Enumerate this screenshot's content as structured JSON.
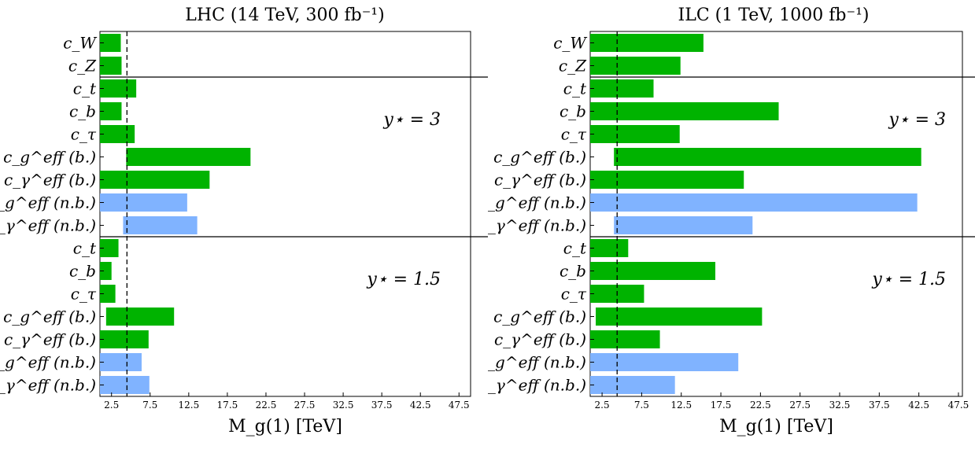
{
  "chart_data": [
    {
      "type": "bar",
      "orientation": "horizontal",
      "title": "LHC (14 TeV, 300 fb⁻¹)",
      "xlabel": "M_g(1) [TeV]",
      "xlim": [
        1.0,
        49.0
      ],
      "xticks": [
        "2.5",
        "7.5",
        "12.5",
        "17.5",
        "22.5",
        "27.5",
        "32.5",
        "37.5",
        "42.5",
        "47.5"
      ],
      "xtick_values": [
        2.5,
        7.5,
        12.5,
        17.5,
        22.5,
        27.5,
        32.5,
        37.5,
        42.5,
        47.5
      ],
      "reference_line": 4.5,
      "grid": false,
      "groups": [
        {
          "label": "",
          "rows": [
            {
              "label": "c_W",
              "start": 1.0,
              "end": 3.7,
              "color": "#00b300"
            },
            {
              "label": "c_Z",
              "start": 1.0,
              "end": 3.8,
              "color": "#00b300"
            }
          ]
        },
        {
          "label": "y⋆ = 3",
          "rows": [
            {
              "label": "c_t",
              "start": 1.0,
              "end": 5.7,
              "color": "#00b300"
            },
            {
              "label": "c_b",
              "start": 1.0,
              "end": 3.8,
              "color": "#00b300"
            },
            {
              "label": "c_τ",
              "start": 1.0,
              "end": 5.5,
              "color": "#00b300"
            },
            {
              "label": "c_g^eff (b.)",
              "start": 4.4,
              "end": 20.5,
              "color": "#00b300"
            },
            {
              "label": "c_γ^eff (b.)",
              "start": 1.0,
              "end": 15.2,
              "color": "#00b300"
            },
            {
              "label": "c_g^eff (n.b.)",
              "start": 1.0,
              "end": 12.3,
              "color": "#80b3ff"
            },
            {
              "label": "c_γ^eff (n.b.)",
              "start": 4.0,
              "end": 13.6,
              "color": "#80b3ff"
            }
          ]
        },
        {
          "label": "y⋆ = 1.5",
          "rows": [
            {
              "label": "c_t",
              "start": 1.0,
              "end": 3.4,
              "color": "#00b300"
            },
            {
              "label": "c_b",
              "start": 1.0,
              "end": 2.5,
              "color": "#00b300"
            },
            {
              "label": "c_τ",
              "start": 1.0,
              "end": 3.0,
              "color": "#00b300"
            },
            {
              "label": "c_g^eff (b.)",
              "start": 1.8,
              "end": 10.6,
              "color": "#00b300"
            },
            {
              "label": "c_γ^eff (b.)",
              "start": 1.0,
              "end": 7.3,
              "color": "#00b300"
            },
            {
              "label": "c_g^eff (n.b.)",
              "start": 1.0,
              "end": 6.4,
              "color": "#80b3ff"
            },
            {
              "label": "c_γ^eff (n.b.)",
              "start": 1.0,
              "end": 7.4,
              "color": "#80b3ff"
            }
          ]
        }
      ]
    },
    {
      "type": "bar",
      "orientation": "horizontal",
      "title": "ILC (1 TeV, 1000 fb⁻¹)",
      "xlabel": "M_g(1) [TeV]",
      "xlim": [
        1.0,
        48.0
      ],
      "xticks": [
        "2.5",
        "7.5",
        "12.5",
        "17.5",
        "22.5",
        "27.5",
        "32.5",
        "37.5",
        "42.5",
        "47.5"
      ],
      "xtick_values": [
        2.5,
        7.5,
        12.5,
        17.5,
        22.5,
        27.5,
        32.5,
        37.5,
        42.5,
        47.5
      ],
      "reference_line": 4.4,
      "grid": false,
      "groups": [
        {
          "label": "",
          "rows": [
            {
              "label": "c_W",
              "start": 1.0,
              "end": 15.3,
              "color": "#00b300"
            },
            {
              "label": "c_Z",
              "start": 1.0,
              "end": 12.4,
              "color": "#00b300"
            }
          ]
        },
        {
          "label": "y⋆ = 3",
          "rows": [
            {
              "label": "c_t",
              "start": 1.0,
              "end": 9.0,
              "color": "#00b300"
            },
            {
              "label": "c_b",
              "start": 1.0,
              "end": 24.8,
              "color": "#00b300"
            },
            {
              "label": "c_τ",
              "start": 1.0,
              "end": 12.3,
              "color": "#00b300"
            },
            {
              "label": "c_g^eff (b.)",
              "start": 4.0,
              "end": 42.8,
              "color": "#00b300"
            },
            {
              "label": "c_γ^eff (b.)",
              "start": 1.0,
              "end": 20.4,
              "color": "#00b300"
            },
            {
              "label": "c_g^eff (n.b.)",
              "start": 1.0,
              "end": 42.3,
              "color": "#80b3ff"
            },
            {
              "label": "c_γ^eff (n.b.)",
              "start": 4.0,
              "end": 21.5,
              "color": "#80b3ff"
            }
          ]
        },
        {
          "label": "y⋆ = 1.5",
          "rows": [
            {
              "label": "c_t",
              "start": 1.0,
              "end": 5.8,
              "color": "#00b300"
            },
            {
              "label": "c_b",
              "start": 1.0,
              "end": 16.8,
              "color": "#00b300"
            },
            {
              "label": "c_τ",
              "start": 1.0,
              "end": 7.8,
              "color": "#00b300"
            },
            {
              "label": "c_g^eff (b.)",
              "start": 1.7,
              "end": 22.7,
              "color": "#00b300"
            },
            {
              "label": "c_γ^eff (b.)",
              "start": 1.0,
              "end": 9.8,
              "color": "#00b300"
            },
            {
              "label": "c_g^eff (n.b.)",
              "start": 1.0,
              "end": 19.7,
              "color": "#80b3ff"
            },
            {
              "label": "c_γ^eff (n.b.)",
              "start": 1.0,
              "end": 11.7,
              "color": "#80b3ff"
            }
          ]
        }
      ]
    }
  ]
}
